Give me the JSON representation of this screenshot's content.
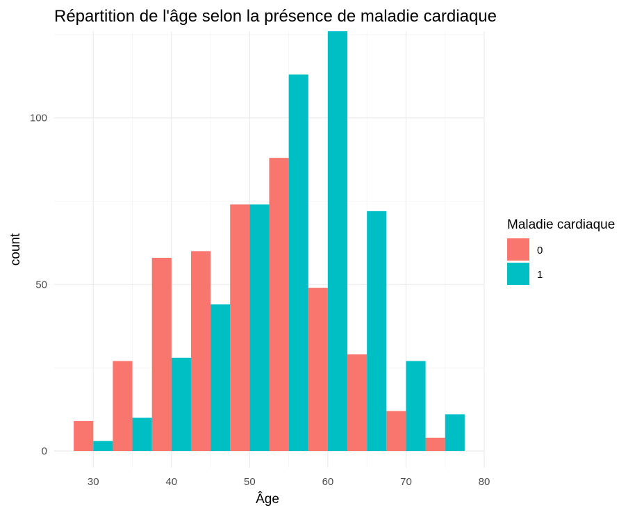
{
  "chart_data": {
    "type": "bar",
    "title": "Répartition de l'âge selon la présence de maladie cardiaque",
    "xlabel": "Âge",
    "ylabel": "count",
    "xlim": [
      25,
      80
    ],
    "ylim": [
      -5,
      126
    ],
    "x_ticks": [
      30,
      40,
      50,
      60,
      70,
      80
    ],
    "y_ticks": [
      0,
      50,
      100
    ],
    "bin_centers": [
      30,
      35,
      40,
      45,
      50,
      55,
      60,
      65,
      70,
      75
    ],
    "bin_width": 5,
    "legend": {
      "title": "Maladie cardiaque",
      "position": "right"
    },
    "grid": true,
    "series": [
      {
        "name": "0",
        "color": "#F8766D",
        "values": [
          9,
          27,
          58,
          60,
          74,
          88,
          49,
          29,
          12,
          4
        ]
      },
      {
        "name": "1",
        "color": "#00BFC4",
        "values": [
          3,
          10,
          28,
          44,
          74,
          113,
          126,
          72,
          27,
          11
        ]
      }
    ]
  }
}
